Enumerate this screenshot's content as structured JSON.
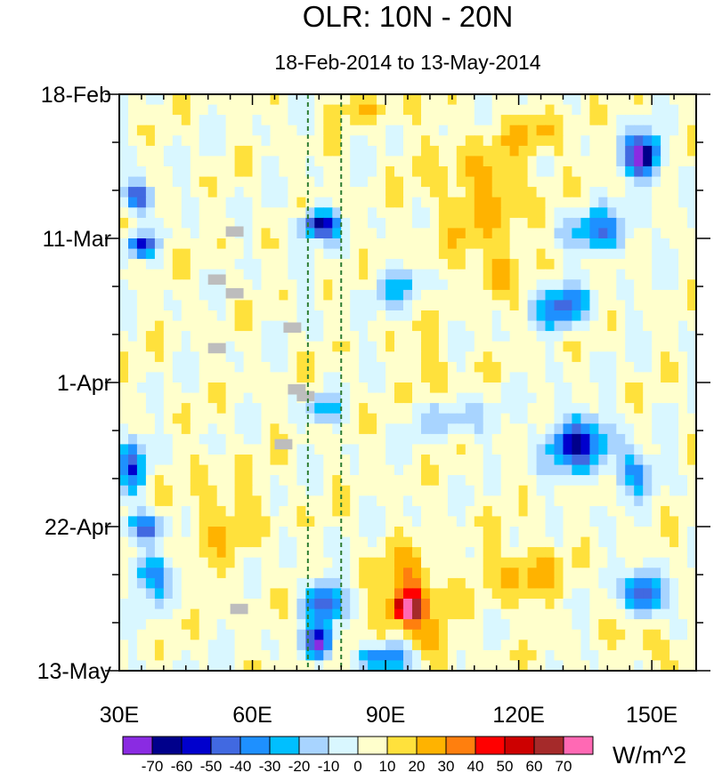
{
  "chart_data": {
    "type": "heatmap",
    "title": "OLR: 10N - 20N",
    "subtitle": "18-Feb-2014 to 13-May-2014",
    "x_axis": {
      "range": [
        30,
        160
      ],
      "ticks": [
        {
          "value": 30,
          "label": "30E"
        },
        {
          "value": 60,
          "label": "60E"
        },
        {
          "value": 90,
          "label": "90E"
        },
        {
          "value": 120,
          "label": "120E"
        },
        {
          "value": 150,
          "label": "150E"
        }
      ]
    },
    "y_axis": {
      "range_days": [
        0,
        84
      ],
      "ticks": [
        {
          "day": 0,
          "label": "18-Feb"
        },
        {
          "day": 21,
          "label": "11-Mar"
        },
        {
          "day": 42,
          "label": "1-Apr"
        },
        {
          "day": 63,
          "label": "22-Apr"
        },
        {
          "day": 84,
          "label": "13-May"
        }
      ]
    },
    "reference_lines_lon": [
      72.5,
      80
    ],
    "colorbar": {
      "units": "W/m^2",
      "levels": [
        "-70",
        "-60",
        "-50",
        "-40",
        "-30",
        "-20",
        "-10",
        "0",
        "10",
        "20",
        "30",
        "40",
        "50",
        "60",
        "70"
      ],
      "colors": [
        "#8a2be2",
        "#00008b",
        "#0000cd",
        "#4169e1",
        "#1e90ff",
        "#00bfff",
        "#a8d4ff",
        "#d9f7ff",
        "#ffffcc",
        "#ffe13c",
        "#ffb300",
        "#ff7f0e",
        "#ff0000",
        "#cd0000",
        "#a52a2a",
        "#ff69b4"
      ]
    },
    "missing_cells": [
      {
        "lon": 56,
        "day": 20
      },
      {
        "lon": 52,
        "day": 27
      },
      {
        "lon": 56,
        "day": 29
      },
      {
        "lon": 69,
        "day": 34
      },
      {
        "lon": 52,
        "day": 37
      },
      {
        "lon": 70,
        "day": 43
      },
      {
        "lon": 72,
        "day": 44
      },
      {
        "lon": 67,
        "day": 51
      },
      {
        "lon": 57,
        "day": 75
      }
    ]
  }
}
